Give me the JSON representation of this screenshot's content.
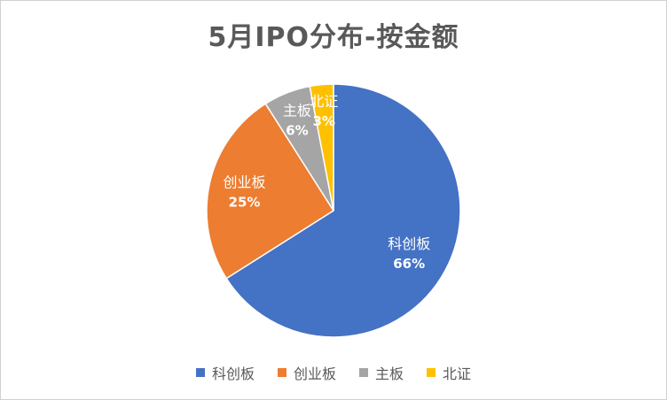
{
  "chart_data": {
    "type": "pie",
    "title": "5月IPO分布-按金额",
    "legend_position": "bottom",
    "slices": [
      {
        "label": "科创板",
        "value": 66,
        "display": "66%",
        "color": "#4472C4"
      },
      {
        "label": "创业板",
        "value": 25,
        "display": "25%",
        "color": "#ED7D31"
      },
      {
        "label": "主板",
        "value": 6,
        "display": "6%",
        "color": "#A5A5A5"
      },
      {
        "label": "北证",
        "value": 3,
        "display": "3%",
        "color": "#FFC000"
      }
    ]
  }
}
